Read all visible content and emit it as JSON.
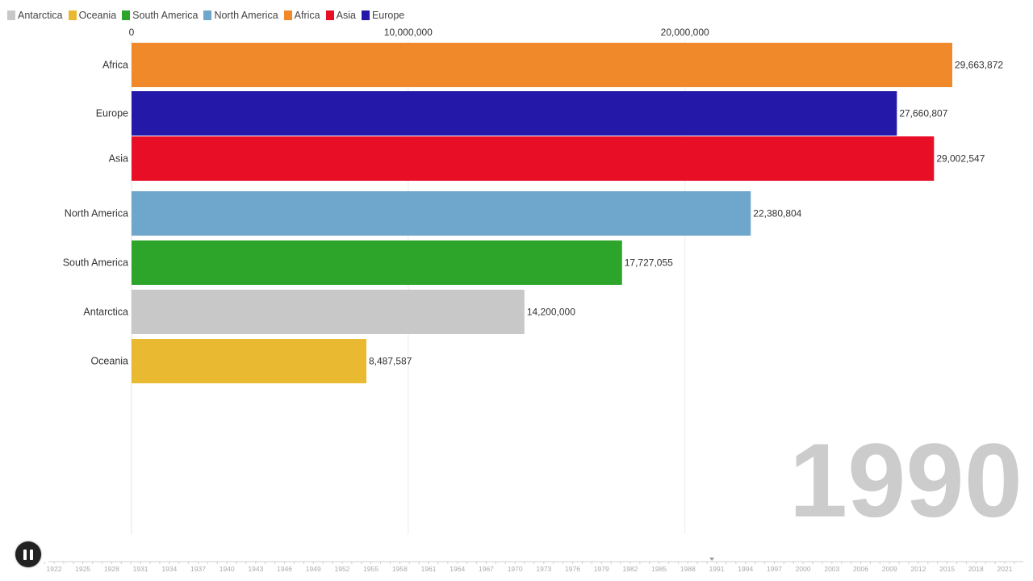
{
  "legend": [
    {
      "name": "Antarctica",
      "color": "#c8c8c8"
    },
    {
      "name": "Oceania",
      "color": "#e8b931"
    },
    {
      "name": "South America",
      "color": "#2ca52a"
    },
    {
      "name": "North America",
      "color": "#6fa6cc"
    },
    {
      "name": "Africa",
      "color": "#f0892a"
    },
    {
      "name": "Asia",
      "color": "#e80e26"
    },
    {
      "name": "Europe",
      "color": "#2418a8"
    }
  ],
  "chart_data": {
    "type": "bar",
    "orientation": "horizontal",
    "year": "1990",
    "categories": [
      "Africa",
      "Europe",
      "Asia",
      "North America",
      "South America",
      "Antarctica",
      "Oceania"
    ],
    "values": [
      29663872,
      27660807,
      29002547,
      22380804,
      17727055,
      14200000,
      8487587
    ],
    "value_labels": [
      "29,663,872",
      "27,660,807",
      "29,002,547",
      "22,380,804",
      "17,727,055",
      "14,200,000",
      "8,487,587"
    ],
    "colors": [
      "#f0892a",
      "#2418a8",
      "#e80e26",
      "#6fa6cc",
      "#2ca52a",
      "#c8c8c8",
      "#e8b931"
    ],
    "x_ticks": [
      0,
      10000000,
      20000000
    ],
    "x_tick_labels": [
      "0",
      "10,000,000",
      "20,000,000"
    ],
    "xlim": [
      0,
      29663872
    ],
    "grid": true,
    "legend_position": "top-left"
  },
  "timeline": {
    "current_year": 1990,
    "years": [
      "1922",
      "1925",
      "1928",
      "1931",
      "1934",
      "1937",
      "1940",
      "1943",
      "1946",
      "1949",
      "1952",
      "1955",
      "1958",
      "1961",
      "1964",
      "1967",
      "1970",
      "1973",
      "1976",
      "1979",
      "1982",
      "1985",
      "1988",
      "1991",
      "1994",
      "1997",
      "2000",
      "2003",
      "2006",
      "2009",
      "2012",
      "2015",
      "2018",
      "2021"
    ]
  },
  "controls": {
    "play_state": "playing"
  }
}
